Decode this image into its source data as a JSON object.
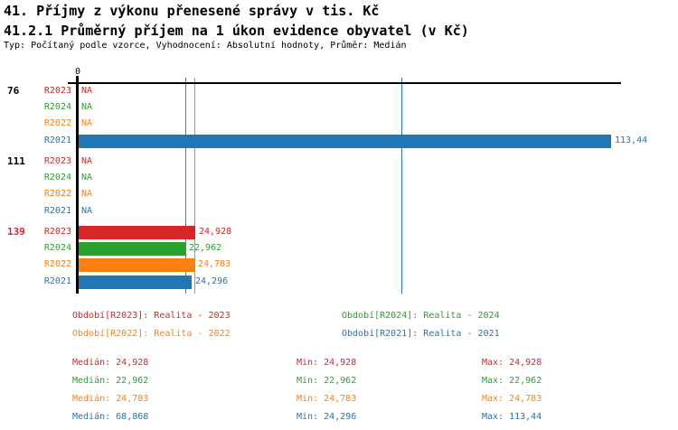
{
  "header": {
    "title_line1": "41. Příjmy z výkonu přenesené správy v tis. Kč",
    "title_line2": "41.2.1 Průměrný příjem na 1 úkon evidence obyvatel (v Kč)",
    "meta": "Typ: Počítaný podle vzorce, Vyhodnocení: Absolutní hodnoty, Průměr: Medián"
  },
  "colors": {
    "R2023": "#d62728",
    "R2024": "#2ca02c",
    "R2022": "#ff7f0e",
    "R2021": "#1f77b4",
    "axis": "#000000",
    "highlight_group": "#d62728",
    "group_label": "#000000"
  },
  "chart_data": {
    "type": "bar",
    "orientation": "horizontal",
    "title": "41. Příjmy z výkonu přenesené správy v tis. Kč",
    "subtitle": "41.2.1 Průměrný příjem na 1 úkon evidence obyvatel (v Kč)",
    "x_zero_label": "0",
    "xlim": [
      0,
      115.6
    ],
    "grid": false,
    "series_order": [
      "R2023",
      "R2024",
      "R2022",
      "R2021"
    ],
    "groups": [
      {
        "label": "76",
        "highlight": false,
        "rows": [
          {
            "series": "R2023",
            "value": null,
            "display": "NA"
          },
          {
            "series": "R2024",
            "value": null,
            "display": "NA"
          },
          {
            "series": "R2022",
            "value": null,
            "display": "NA"
          },
          {
            "series": "R2021",
            "value": 113.44,
            "display": "113,44"
          }
        ]
      },
      {
        "label": "111",
        "highlight": false,
        "rows": [
          {
            "series": "R2023",
            "value": null,
            "display": "NA"
          },
          {
            "series": "R2024",
            "value": null,
            "display": "NA"
          },
          {
            "series": "R2022",
            "value": null,
            "display": "NA"
          },
          {
            "series": "R2021",
            "value": null,
            "display": "NA"
          }
        ]
      },
      {
        "label": "139",
        "highlight": true,
        "rows": [
          {
            "series": "R2023",
            "value": 24.928,
            "display": "24,928"
          },
          {
            "series": "R2024",
            "value": 22.962,
            "display": "22,962"
          },
          {
            "series": "R2022",
            "value": 24.783,
            "display": "24,783"
          },
          {
            "series": "R2021",
            "value": 24.296,
            "display": "24,296"
          }
        ]
      }
    ],
    "median_lines": [
      {
        "series": "R2023",
        "value": 24.928,
        "visible": false
      },
      {
        "series": "R2024",
        "value": 22.962,
        "visible": true
      },
      {
        "series": "R2022",
        "value": 24.783,
        "visible": true
      },
      {
        "series": "R2021",
        "value": 68.868,
        "visible": true
      }
    ]
  },
  "legend": [
    {
      "series": "R2023",
      "label": "Období[R2023]: Realita - 2023"
    },
    {
      "series": "R2024",
      "label": "Období[R2024]: Realita - 2024"
    },
    {
      "series": "R2022",
      "label": "Období[R2022]: Realita - 2022"
    },
    {
      "series": "R2021",
      "label": "Období[R2021]: Realita - 2021"
    }
  ],
  "stats_labels": {
    "median": "Medián:",
    "min": "Min:",
    "max": "Max:"
  },
  "stats": [
    {
      "series": "R2023",
      "median": "24,928",
      "min": "24,928",
      "max": "24,928"
    },
    {
      "series": "R2024",
      "median": "22,962",
      "min": "22,962",
      "max": "22,962"
    },
    {
      "series": "R2022",
      "median": "24,783",
      "min": "24,783",
      "max": "24,783"
    },
    {
      "series": "R2021",
      "median": "68,868",
      "min": "24,296",
      "max": "113,44"
    }
  ]
}
